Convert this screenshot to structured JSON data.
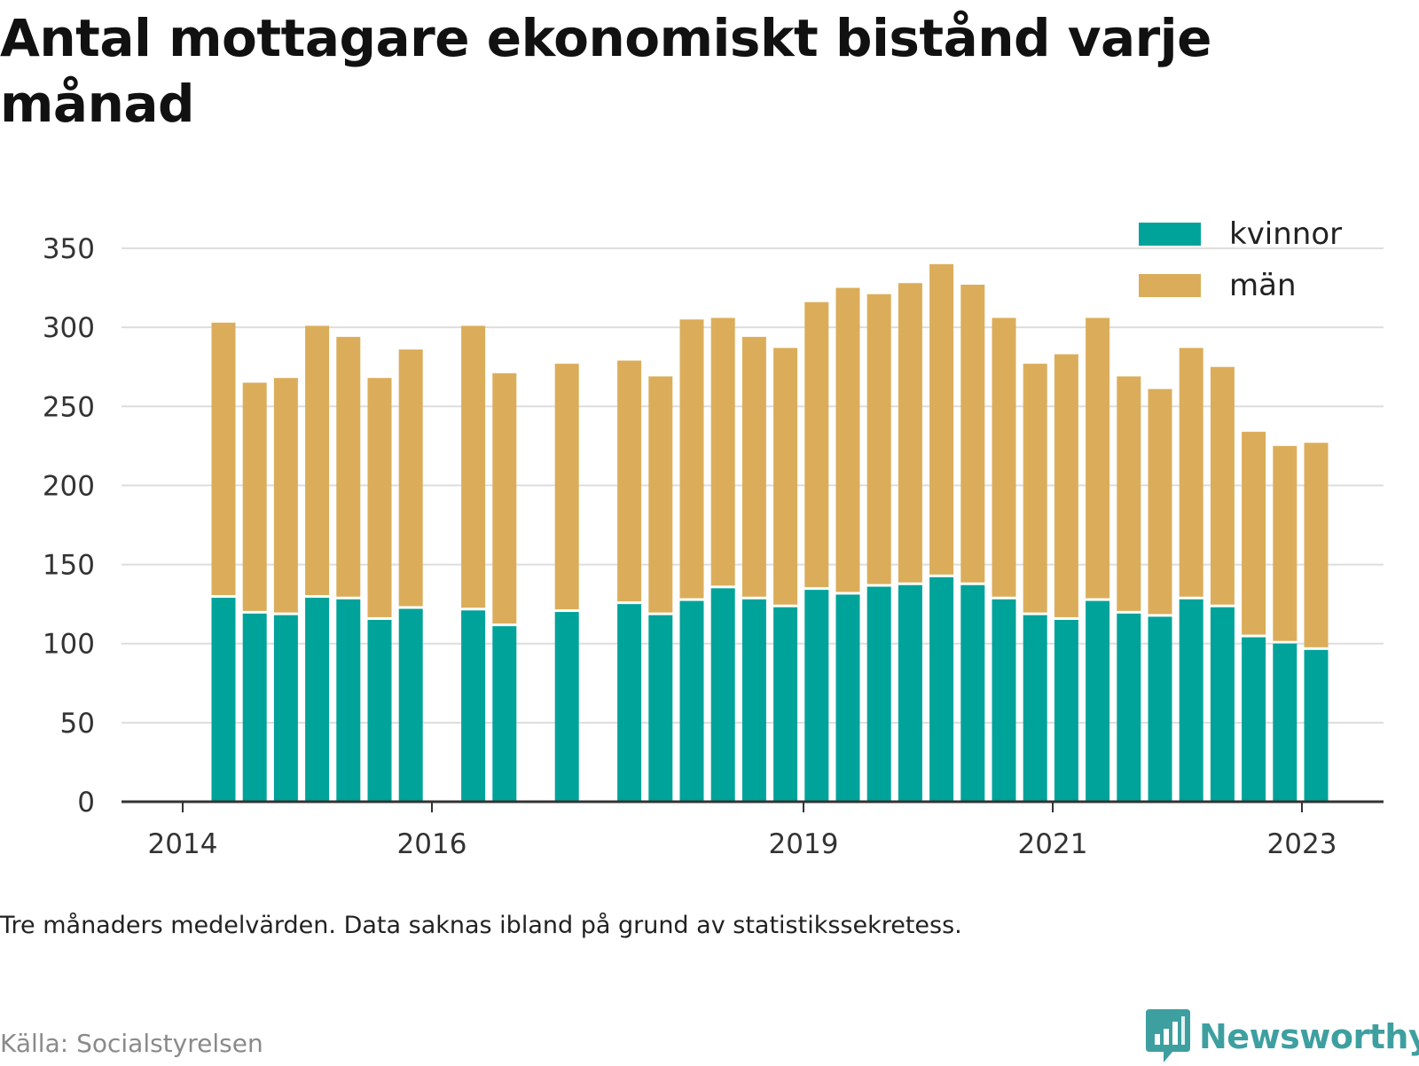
{
  "title": "Antal mottagare ekonomiskt bistånd varje månad",
  "footnote": "Tre månaders medelvärden. Data saknas ibland på grund av statistikssekretess.",
  "source": "Källa: Socialstyrelsen",
  "brand": {
    "name": "Newsworthy",
    "icon": "newsworthy-chart-bubble-icon"
  },
  "colors": {
    "kvinnor": "#00a39a",
    "man": "#dbad5a",
    "grid": "#dddddd",
    "axis": "#333333",
    "text": "#333333"
  },
  "chart_data": {
    "type": "bar",
    "stacked": true,
    "x_axis": {
      "type": "date",
      "tick_labels": [
        "2014",
        "2016",
        "2019",
        "2021",
        "2023"
      ]
    },
    "y_axis": {
      "range": [
        0,
        350
      ],
      "ticks": [
        0,
        50,
        100,
        150,
        200,
        250,
        300,
        350
      ]
    },
    "grid": "horizontal",
    "legend_position": "top-right",
    "periods": [
      "2014-Q2",
      "2014-Q3",
      "2014-Q4",
      "2015-Q1",
      "2015-Q2",
      "2015-Q3",
      "2015-Q4",
      "2016-Q1",
      "2016-Q2",
      "2016-Q3",
      "2016-Q4",
      "2017-Q1",
      "2017-Q2",
      "2017-Q3",
      "2017-Q4",
      "2018-Q1",
      "2018-Q2",
      "2018-Q3",
      "2018-Q4",
      "2019-Q1",
      "2019-Q2",
      "2019-Q3",
      "2019-Q4",
      "2020-Q1",
      "2020-Q2",
      "2020-Q3",
      "2020-Q4",
      "2021-Q1",
      "2021-Q2",
      "2021-Q3",
      "2021-Q4",
      "2022-Q1",
      "2022-Q2",
      "2022-Q3",
      "2022-Q4",
      "2023-Q1"
    ],
    "series": [
      {
        "name": "kvinnor",
        "color": "#00a39a",
        "values": [
          129,
          119,
          118,
          129,
          128,
          115,
          122,
          null,
          121,
          111,
          null,
          120,
          null,
          125,
          118,
          127,
          135,
          128,
          123,
          134,
          131,
          136,
          137,
          142,
          137,
          128,
          118,
          115,
          127,
          119,
          117,
          128,
          123,
          104,
          100,
          96
        ]
      },
      {
        "name": "män",
        "color": "#dbad5a",
        "values": [
          174,
          146,
          150,
          172,
          166,
          153,
          164,
          null,
          180,
          160,
          null,
          157,
          null,
          154,
          151,
          178,
          171,
          166,
          164,
          182,
          194,
          185,
          191,
          198,
          190,
          178,
          159,
          168,
          179,
          150,
          144,
          159,
          152,
          130,
          125,
          131
        ]
      }
    ]
  }
}
